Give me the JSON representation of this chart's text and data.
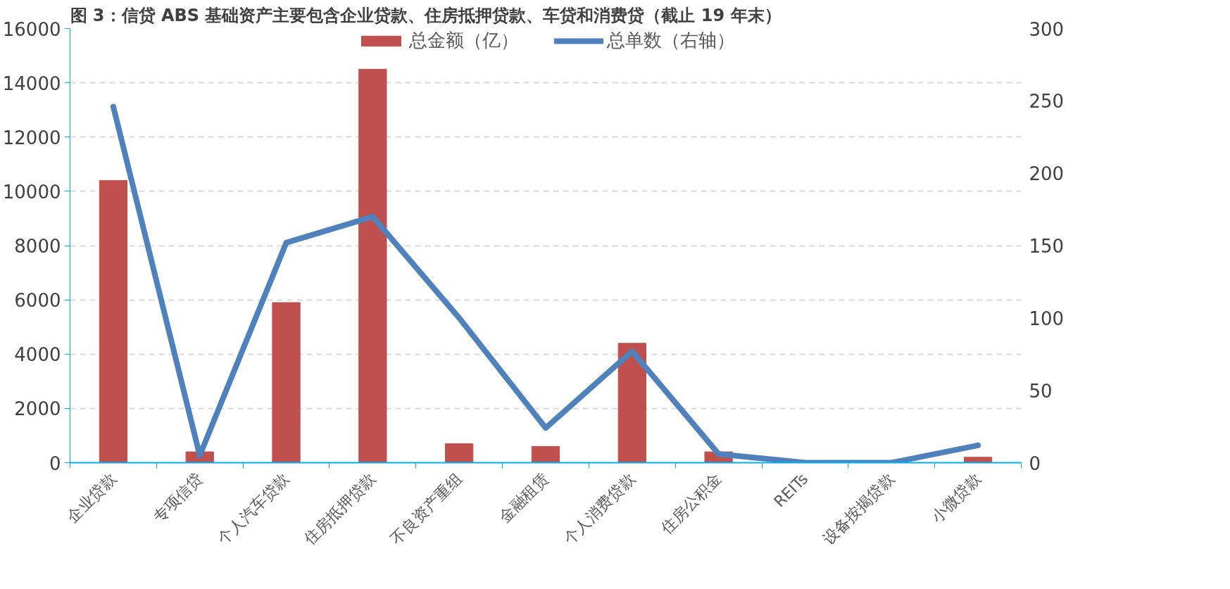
{
  "chart_data": {
    "type": "bar",
    "title": "图 3：信贷 ABS 基础资产主要包含企业贷款、住房抵押贷款、车贷和消费贷（截止 19 年末）",
    "categories": [
      "企业贷款",
      "专项信贷",
      "个人汽车贷款",
      "住房抵押贷款",
      "不良资产重组",
      "金融租赁",
      "个人消费贷款",
      "住房公积金",
      "REITs",
      "设备按揭贷款",
      "小微贷款"
    ],
    "series": [
      {
        "name": "总金额（亿）",
        "color": "#c0504d",
        "values": [
          10400,
          400,
          5900,
          14500,
          700,
          600,
          4400,
          400,
          0,
          0,
          200
        ]
      },
      {
        "name": "总单数（右轴）",
        "type": "line",
        "axis": "y2",
        "color": "#4f81bd",
        "values": [
          246,
          5,
          152,
          170,
          100,
          24,
          77,
          6,
          0,
          0,
          12
        ]
      }
    ],
    "ylim": [
      0,
      16000
    ],
    "yticks": [
      0,
      2000,
      4000,
      6000,
      8000,
      10000,
      12000,
      14000,
      16000
    ],
    "y2lim": [
      0,
      300
    ],
    "y2ticks": [
      0,
      50,
      100,
      150,
      200,
      250,
      300
    ],
    "grid": "y",
    "legend": "top",
    "line_style": "solid"
  }
}
